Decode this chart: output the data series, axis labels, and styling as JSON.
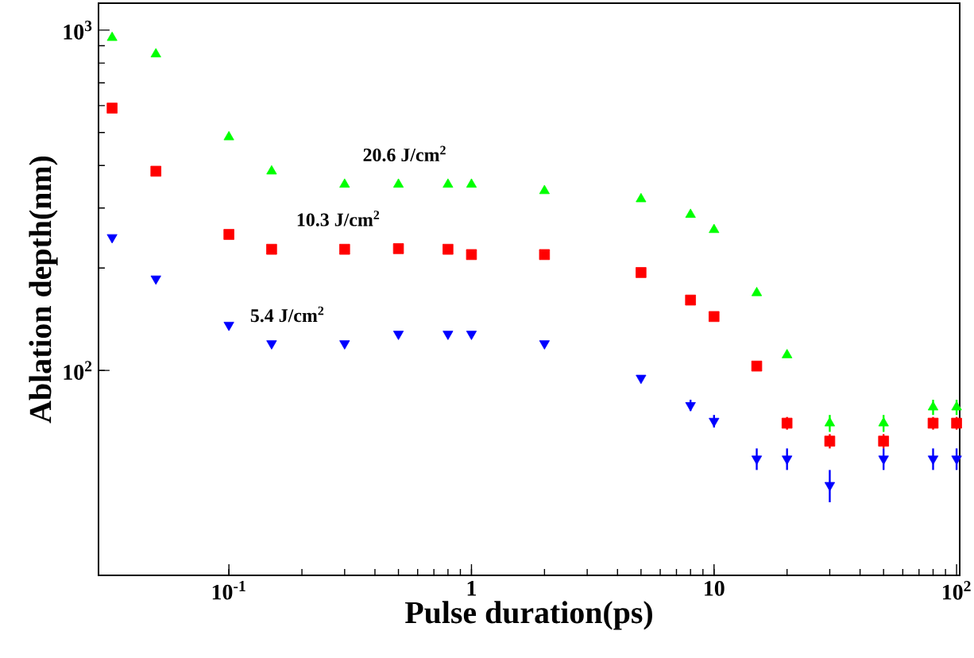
{
  "chart_data": {
    "type": "scatter",
    "xlabel": "Pulse duration(ps)",
    "ylabel": "Ablation depth(nm)",
    "log": "xy",
    "grid": false,
    "legend": false,
    "x": [
      0.033,
      0.05,
      0.1,
      0.15,
      0.3,
      0.5,
      0.8,
      1,
      2,
      5,
      8,
      10,
      15,
      20,
      30,
      50,
      80,
      100
    ],
    "xlim": [
      0.029,
      103
    ],
    "ylim": [
      25,
      1200
    ],
    "xticks": [
      {
        "value": 0.1,
        "label": "10$^{-1}$"
      },
      1,
      10,
      {
        "value": 100,
        "label": "10$^{2}$"
      }
    ],
    "yticks": [
      {
        "value": 100,
        "label": "10$^{2}$"
      },
      {
        "value": 1000,
        "label": "10$^{3}$"
      }
    ],
    "series": [
      {
        "name": "20.6 J/cm$^{2}$",
        "color": "#00ff00",
        "marker": "triangle",
        "values": [
          950,
          850,
          485,
          385,
          352,
          352,
          352,
          352,
          337,
          319,
          287,
          259,
          169,
          111,
          70,
          70,
          78,
          78
        ],
        "errors": [
          null,
          null,
          null,
          null,
          null,
          null,
          null,
          null,
          null,
          null,
          null,
          null,
          null,
          null,
          4,
          4,
          4,
          4
        ]
      },
      {
        "name": "10.3 J/cm$^{2}$",
        "color": "#ff0000",
        "marker": "square",
        "values": [
          590,
          385,
          251,
          227,
          227,
          228,
          227,
          219,
          219,
          194,
          161,
          144,
          103,
          70,
          62,
          62,
          70,
          70
        ],
        "errors": [
          null,
          null,
          null,
          null,
          null,
          null,
          null,
          null,
          null,
          null,
          null,
          null,
          null,
          3,
          3,
          3,
          3,
          3
        ]
      },
      {
        "name": "5.4 J/cm$^{2}$",
        "color": "#0000ff",
        "marker": "triangle-down",
        "values": [
          246,
          186,
          136,
          120,
          120,
          128,
          128,
          128,
          120,
          95,
          79,
          71,
          55,
          55,
          46,
          55,
          55,
          55
        ],
        "errors": [
          null,
          null,
          null,
          null,
          null,
          null,
          null,
          null,
          null,
          null,
          3,
          3,
          4,
          4,
          5,
          4,
          4,
          4
        ]
      }
    ]
  }
}
